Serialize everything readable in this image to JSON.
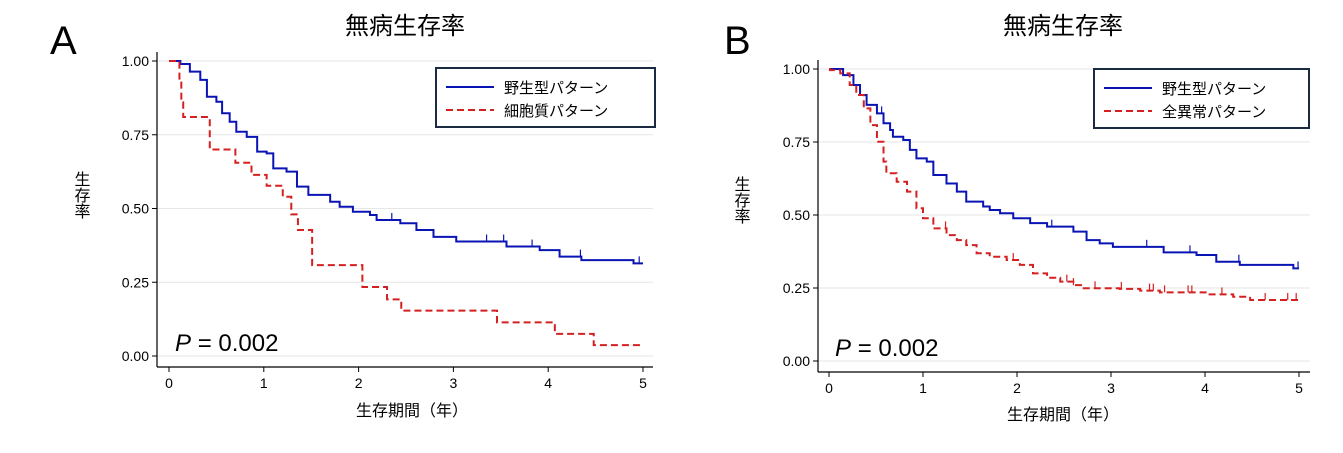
{
  "chart_data": [
    {
      "panel_label": "A",
      "type": "line",
      "step": true,
      "title": "無病生存率",
      "xlabel": "生存期間（年）",
      "ylabel": "生存率",
      "xlim": [
        0,
        5
      ],
      "ylim": [
        0,
        1
      ],
      "xticks": [
        "0",
        "1",
        "2",
        "3",
        "4",
        "5"
      ],
      "yticks": [
        "0.00",
        "0.25",
        "0.50",
        "0.75",
        "1.00"
      ],
      "grid": true,
      "legend_position": "top-right",
      "annotation": {
        "label": "P",
        "value": "= 0.002"
      },
      "series": [
        {
          "name": "野生型パターン",
          "color": "#0a14b4",
          "dashed": false,
          "steps": [
            [
              0.01,
              1.0
            ],
            [
              0.12,
              0.99
            ],
            [
              0.22,
              0.964
            ],
            [
              0.33,
              0.936
            ],
            [
              0.4,
              0.879
            ],
            [
              0.5,
              0.862
            ],
            [
              0.56,
              0.823
            ],
            [
              0.64,
              0.794
            ],
            [
              0.71,
              0.76
            ],
            [
              0.82,
              0.743
            ],
            [
              0.93,
              0.693
            ],
            [
              1.03,
              0.687
            ],
            [
              1.1,
              0.636
            ],
            [
              1.24,
              0.625
            ],
            [
              1.35,
              0.574
            ],
            [
              1.47,
              0.546
            ],
            [
              1.7,
              0.523
            ],
            [
              1.8,
              0.506
            ],
            [
              1.94,
              0.489
            ],
            [
              2.12,
              0.478
            ],
            [
              2.19,
              0.461
            ],
            [
              2.44,
              0.45
            ],
            [
              2.61,
              0.427
            ],
            [
              2.79,
              0.404
            ],
            [
              3.03,
              0.388
            ],
            [
              3.56,
              0.371
            ],
            [
              3.91,
              0.359
            ],
            [
              4.12,
              0.337
            ],
            [
              4.35,
              0.325
            ],
            [
              4.9,
              0.314
            ]
          ],
          "censored": [
            2.35,
            3.35,
            3.53,
            3.83,
            4.34,
            4.96
          ],
          "end": 5.0
        },
        {
          "name": "細胞質パターン",
          "color": "#d42020",
          "dashed": true,
          "steps": [
            [
              0.11,
              0.93
            ],
            [
              0.13,
              0.86
            ],
            [
              0.15,
              0.81
            ],
            [
              0.43,
              0.7
            ],
            [
              0.7,
              0.655
            ],
            [
              0.87,
              0.614
            ],
            [
              1.03,
              0.577
            ],
            [
              1.2,
              0.54
            ],
            [
              1.29,
              0.48
            ],
            [
              1.36,
              0.427
            ],
            [
              1.51,
              0.308
            ],
            [
              2.04,
              0.234
            ],
            [
              2.3,
              0.192
            ],
            [
              2.45,
              0.154
            ],
            [
              3.46,
              0.114
            ],
            [
              4.07,
              0.075
            ],
            [
              4.48,
              0.037
            ]
          ],
          "censored": [],
          "end": 5.0
        }
      ]
    },
    {
      "panel_label": "B",
      "type": "line",
      "step": true,
      "title": "無病生存率",
      "xlabel": "生存期間（年）",
      "ylabel": "生存率",
      "xlim": [
        0,
        5
      ],
      "ylim": [
        0,
        1
      ],
      "xticks": [
        "0",
        "1",
        "2",
        "3",
        "4",
        "5"
      ],
      "yticks": [
        "0.00",
        "0.25",
        "0.50",
        "0.75",
        "1.00"
      ],
      "grid": true,
      "legend_position": "top-right",
      "annotation": {
        "label": "P",
        "value": "= 0.002"
      },
      "series": [
        {
          "name": "野生型パターン",
          "color": "#0a14b4",
          "dashed": false,
          "steps": [
            [
              0.01,
              1.0
            ],
            [
              0.15,
              0.979
            ],
            [
              0.26,
              0.945
            ],
            [
              0.33,
              0.911
            ],
            [
              0.4,
              0.877
            ],
            [
              0.51,
              0.848
            ],
            [
              0.58,
              0.814
            ],
            [
              0.65,
              0.791
            ],
            [
              0.68,
              0.768
            ],
            [
              0.79,
              0.757
            ],
            [
              0.86,
              0.723
            ],
            [
              0.93,
              0.694
            ],
            [
              1.04,
              0.683
            ],
            [
              1.11,
              0.637
            ],
            [
              1.25,
              0.608
            ],
            [
              1.36,
              0.58
            ],
            [
              1.46,
              0.546
            ],
            [
              1.64,
              0.529
            ],
            [
              1.71,
              0.517
            ],
            [
              1.82,
              0.506
            ],
            [
              1.96,
              0.489
            ],
            [
              2.14,
              0.472
            ],
            [
              2.32,
              0.46
            ],
            [
              2.6,
              0.443
            ],
            [
              2.74,
              0.414
            ],
            [
              2.88,
              0.403
            ],
            [
              3.02,
              0.391
            ],
            [
              3.56,
              0.372
            ],
            [
              3.91,
              0.363
            ],
            [
              4.12,
              0.34
            ],
            [
              4.37,
              0.329
            ],
            [
              4.94,
              0.317
            ]
          ],
          "censored": [
            0.56,
            2.37,
            3.38,
            3.84,
            4.36,
            4.99
          ],
          "end": 5.0
        },
        {
          "name": "全異常パターン",
          "color": "#d42020",
          "dashed": true,
          "steps": [
            [
              0.01,
              0.996
            ],
            [
              0.12,
              0.985
            ],
            [
              0.22,
              0.945
            ],
            [
              0.29,
              0.911
            ],
            [
              0.37,
              0.865
            ],
            [
              0.44,
              0.808
            ],
            [
              0.51,
              0.751
            ],
            [
              0.58,
              0.683
            ],
            [
              0.61,
              0.643
            ],
            [
              0.72,
              0.614
            ],
            [
              0.83,
              0.58
            ],
            [
              0.93,
              0.523
            ],
            [
              1.0,
              0.489
            ],
            [
              1.11,
              0.454
            ],
            [
              1.25,
              0.431
            ],
            [
              1.36,
              0.414
            ],
            [
              1.46,
              0.397
            ],
            [
              1.57,
              0.369
            ],
            [
              1.71,
              0.357
            ],
            [
              1.89,
              0.346
            ],
            [
              2.03,
              0.329
            ],
            [
              2.17,
              0.3
            ],
            [
              2.32,
              0.285
            ],
            [
              2.46,
              0.272
            ],
            [
              2.6,
              0.26
            ],
            [
              2.71,
              0.249
            ],
            [
              3.09,
              0.247
            ],
            [
              3.31,
              0.241
            ],
            [
              3.52,
              0.235
            ],
            [
              4.02,
              0.228
            ],
            [
              4.3,
              0.22
            ],
            [
              4.48,
              0.209
            ]
          ],
          "censored": [
            1.24,
            1.96,
            2.53,
            2.6,
            2.83,
            3.11,
            3.41,
            3.45,
            3.57,
            3.82,
            3.86,
            4.18,
            4.64,
            4.88,
            4.97
          ],
          "end": 5.0
        }
      ]
    }
  ]
}
